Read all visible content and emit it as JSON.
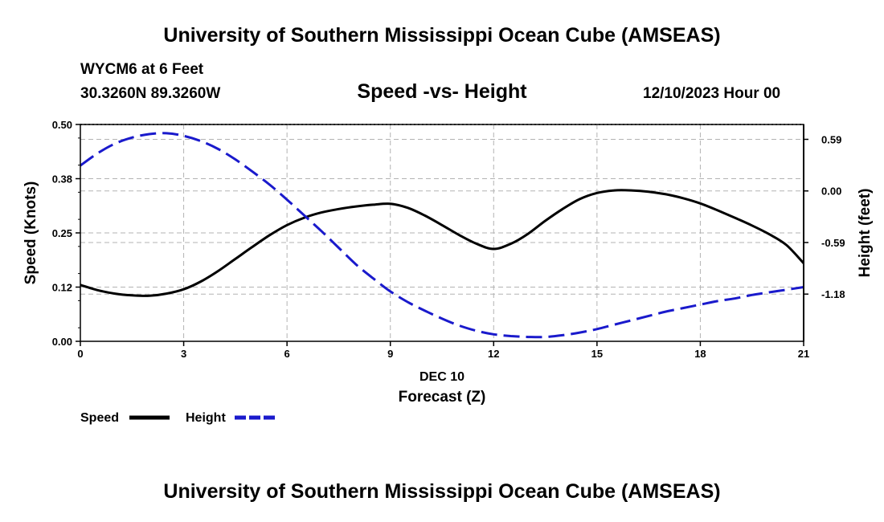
{
  "header": {
    "title": "University of Southern Mississippi Ocean Cube (AMSEAS)",
    "station": "WYCM6 at 6 Feet",
    "coords": "30.3260N  89.3260W",
    "subtitle": "Speed -vs- Height",
    "date": "12/10/2023 Hour 00"
  },
  "footer": {
    "title": "University of Southern Mississippi Ocean Cube (AMSEAS)"
  },
  "chart_data": {
    "type": "line",
    "title": "Speed -vs- Height",
    "xlabel": "Forecast (Z)",
    "xlabel_date": "DEC 10",
    "ylabel": "Speed (Knots)",
    "y2label": "Height (feet)",
    "xlim": [
      0,
      21
    ],
    "ylim": [
      0,
      0.5
    ],
    "y2lim": [
      -1.72,
      0.76
    ],
    "x_ticks": [
      0,
      3,
      6,
      9,
      12,
      15,
      18,
      21
    ],
    "x_tick_labels": [
      "0",
      "3",
      "6",
      "9",
      "12",
      "15",
      "18",
      "21"
    ],
    "y_ticks": [
      0.0,
      0.125,
      0.25,
      0.375,
      0.5
    ],
    "y_tick_labels": [
      "0.00",
      "0.12",
      "0.25",
      "0.38",
      "0.50"
    ],
    "y2_ticks": [
      0.59,
      0.0,
      -0.59,
      -1.18
    ],
    "y2_tick_labels": [
      "0.59",
      "0.00",
      "-0.59",
      "-1.18"
    ],
    "grid": true,
    "series": [
      {
        "name": "Speed",
        "axis": "left",
        "color": "#000000",
        "style": "solid",
        "x": [
          0,
          0.5,
          1,
          1.5,
          2,
          2.5,
          3,
          3.5,
          4,
          4.5,
          5,
          5.5,
          6,
          6.5,
          7,
          7.5,
          8,
          8.5,
          9,
          9.5,
          10,
          10.5,
          11,
          11.5,
          12,
          12.5,
          13,
          13.5,
          14,
          14.5,
          15,
          15.5,
          16,
          16.5,
          17,
          17.5,
          18,
          18.5,
          19,
          19.5,
          20,
          20.5,
          21
        ],
        "values": [
          0.13,
          0.118,
          0.11,
          0.106,
          0.105,
          0.11,
          0.12,
          0.138,
          0.162,
          0.19,
          0.218,
          0.245,
          0.268,
          0.285,
          0.297,
          0.305,
          0.311,
          0.315,
          0.317,
          0.308,
          0.29,
          0.268,
          0.245,
          0.225,
          0.213,
          0.225,
          0.248,
          0.278,
          0.305,
          0.328,
          0.342,
          0.348,
          0.348,
          0.345,
          0.339,
          0.33,
          0.318,
          0.302,
          0.285,
          0.267,
          0.247,
          0.222,
          0.18
        ]
      },
      {
        "name": "Height",
        "axis": "right",
        "color": "#1a1acc",
        "style": "dashed",
        "x": [
          0,
          0.5,
          1,
          1.5,
          2,
          2.5,
          3,
          3.5,
          4,
          4.5,
          5,
          5.5,
          6,
          6.5,
          7,
          7.5,
          8,
          8.5,
          9,
          9.5,
          10,
          10.5,
          11,
          11.5,
          12,
          12.5,
          13,
          13.5,
          14,
          14.5,
          15,
          15.5,
          16,
          16.5,
          17,
          17.5,
          18,
          18.5,
          19,
          19.5,
          20,
          20.5,
          21
        ],
        "values": [
          0.29,
          0.43,
          0.54,
          0.61,
          0.65,
          0.66,
          0.63,
          0.57,
          0.48,
          0.36,
          0.22,
          0.07,
          -0.1,
          -0.28,
          -0.46,
          -0.65,
          -0.84,
          -1.0,
          -1.15,
          -1.27,
          -1.37,
          -1.46,
          -1.54,
          -1.6,
          -1.64,
          -1.66,
          -1.67,
          -1.67,
          -1.65,
          -1.62,
          -1.58,
          -1.53,
          -1.48,
          -1.43,
          -1.38,
          -1.34,
          -1.3,
          -1.26,
          -1.23,
          -1.19,
          -1.16,
          -1.13,
          -1.1
        ]
      }
    ],
    "legend": {
      "placement": "bottom-left",
      "items": [
        {
          "label": "Speed",
          "color": "#000000",
          "style": "solid"
        },
        {
          "label": "Height",
          "color": "#1a1acc",
          "style": "dashed"
        }
      ]
    }
  }
}
